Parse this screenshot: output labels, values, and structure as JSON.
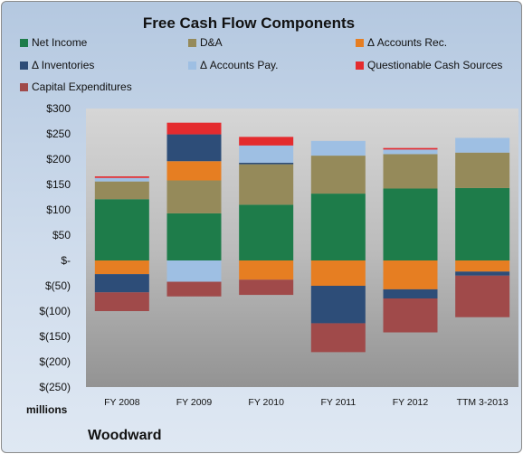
{
  "chart_data": {
    "type": "bar",
    "stacked": true,
    "title": "Free Cash Flow Components",
    "units_label": "millions",
    "company": "Woodward",
    "categories": [
      "FY 2008",
      "FY 2009",
      "FY 2010",
      "FY 2011",
      "FY 2012",
      "TTM 3-2013"
    ],
    "ylim": [
      -250,
      300
    ],
    "ytick_values": [
      300,
      250,
      200,
      150,
      100,
      50,
      0,
      -50,
      -100,
      -150,
      -200,
      -250
    ],
    "ytick_labels": [
      "$300",
      "$250",
      "$200",
      "$150",
      "$100",
      "$50",
      "$-",
      "$(50)",
      "$(100)",
      "$(150)",
      "$(200)",
      "$(250)"
    ],
    "legend_position": "top",
    "series": [
      {
        "name": "Net Income",
        "color": "#1e7c4a",
        "values": [
          121,
          93,
          110,
          132,
          142,
          143
        ]
      },
      {
        "name": "D&A",
        "color": "#958a5a",
        "values": [
          35,
          65,
          80,
          75,
          68,
          70
        ]
      },
      {
        "name": "Δ Accounts Rec.",
        "color": "#e67e22",
        "values": [
          -27,
          38,
          -38,
          -50,
          -57,
          -22
        ]
      },
      {
        "name": "Δ Inventories",
        "color": "#2d4d78",
        "values": [
          -36,
          53,
          3,
          -74,
          -18,
          -8
        ]
      },
      {
        "name": "Δ Accounts Pay.",
        "color": "#9ebfe3",
        "values": [
          7,
          -42,
          34,
          29,
          9,
          29
        ]
      },
      {
        "name": "Questionable Cash Sources",
        "color": "#e42b2e",
        "values": [
          3,
          23,
          17,
          0,
          3,
          0
        ]
      },
      {
        "name": "Capital Expenditures",
        "color": "#a04a4a",
        "values": [
          -37,
          -29,
          -30,
          -57,
          -67,
          -82
        ]
      }
    ]
  }
}
